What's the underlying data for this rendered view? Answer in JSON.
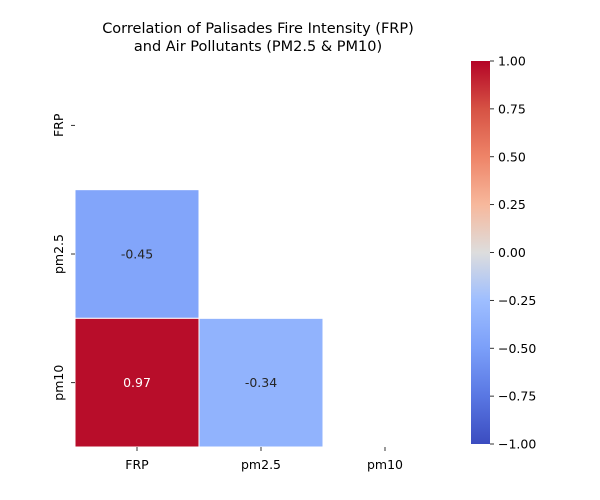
{
  "chart_data": {
    "type": "heatmap",
    "title_lines": [
      "Correlation of Palisades Fire Intensity (FRP)",
      "and Air Pollutants (PM2.5 & PM10)"
    ],
    "x_categories": [
      "FRP",
      "pm2.5",
      "pm10"
    ],
    "y_categories": [
      "FRP",
      "pm2.5",
      "pm10"
    ],
    "mask": "upper triangle including diagonal",
    "cells": [
      {
        "row": "pm2.5",
        "col": "FRP",
        "value": -0.45
      },
      {
        "row": "pm10",
        "col": "FRP",
        "value": 0.97
      },
      {
        "row": "pm10",
        "col": "pm2.5",
        "value": -0.34
      }
    ],
    "colormap": "coolwarm",
    "vmin": -1.0,
    "vmax": 1.0,
    "colorbar_ticks": [
      "1.00",
      "0.75",
      "0.50",
      "0.25",
      "0.00",
      "−0.25",
      "−0.50",
      "−0.75",
      "−1.00"
    ],
    "colorbar_tick_values": [
      1.0,
      0.75,
      0.5,
      0.25,
      0.0,
      -0.25,
      -0.5,
      -0.75,
      -1.0
    ],
    "annotation_format": "0.00"
  }
}
